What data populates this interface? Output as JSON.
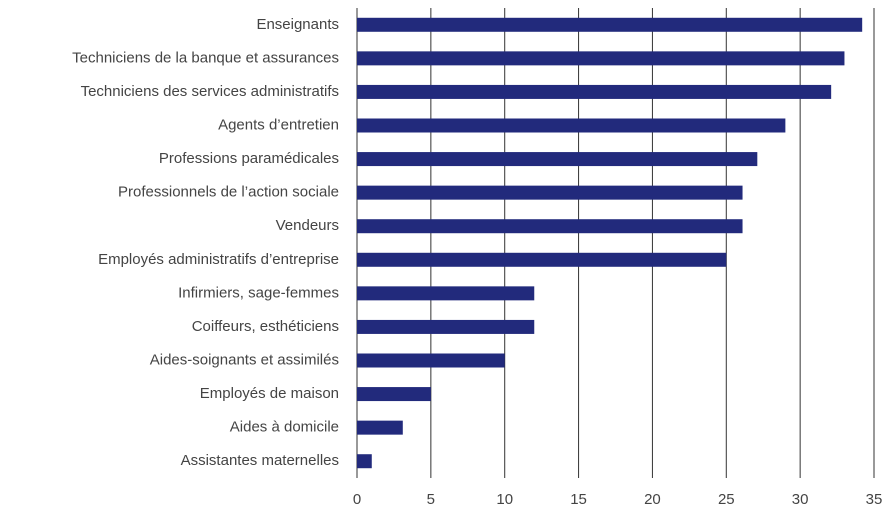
{
  "chart_data": {
    "type": "hbar",
    "categories": [
      "Enseignants",
      "Techniciens de la banque et assurances",
      "Techniciens des services administratifs",
      "Agents d’entretien",
      "Professions paramédicales",
      "Professionnels de l’action sociale",
      "Vendeurs",
      "Employés administratifs d’entreprise",
      "Infirmiers, sage-femmes",
      "Coiffeurs, esthéticiens",
      "Aides-soignants et assimilés",
      "Employés de maison",
      "Aides à domicile",
      "Assistantes maternelles"
    ],
    "values": [
      34.2,
      33,
      32.1,
      29,
      27.1,
      26.1,
      26.1,
      25,
      12,
      12,
      10,
      5,
      3.1,
      1
    ],
    "color": "#222a7c",
    "xlim": [
      0,
      35
    ],
    "xticks": [
      0,
      5,
      10,
      15,
      20,
      25,
      30,
      35
    ],
    "grid": true
  }
}
